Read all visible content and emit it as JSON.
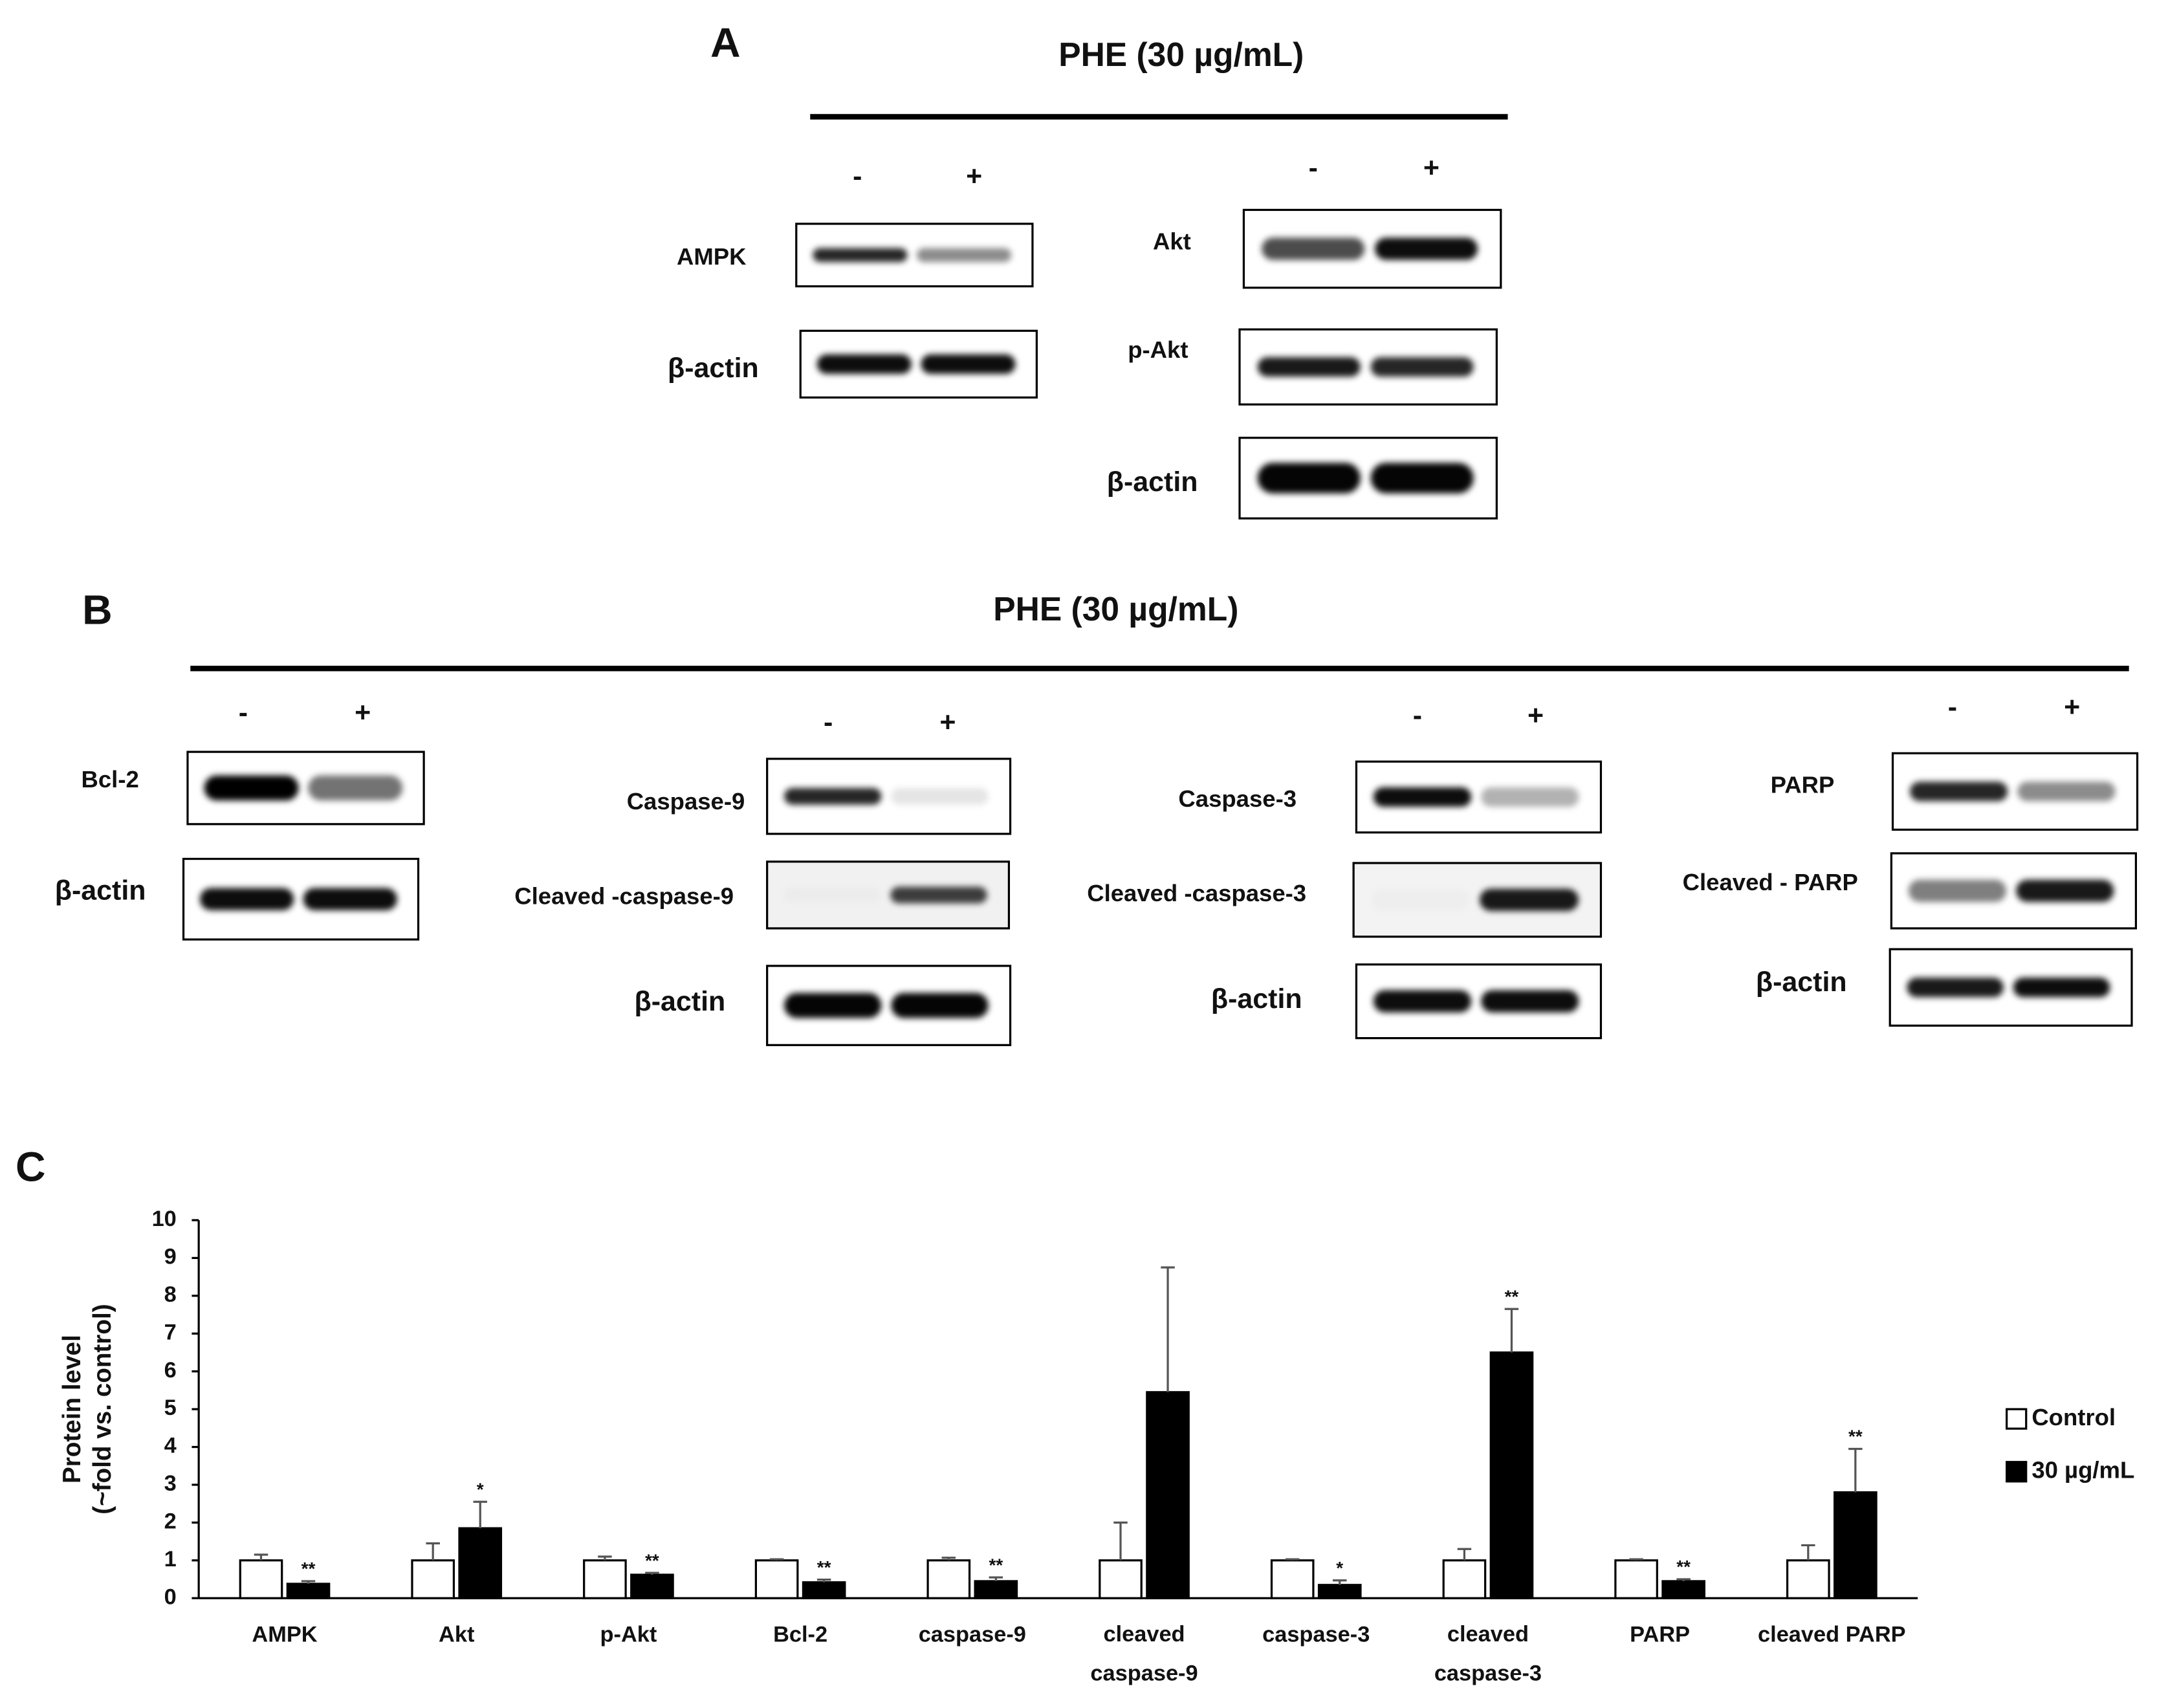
{
  "panel_a": {
    "label": "A",
    "treatment": "PHE (30 µg/mL)",
    "lanes": [
      "-",
      "+"
    ],
    "blots": [
      "AMPK",
      "β-actin",
      "Akt",
      "p-Akt",
      "β-actin"
    ]
  },
  "panel_b": {
    "label": "B",
    "treatment": "PHE (30 µg/mL)",
    "lanes": [
      "-",
      "+"
    ],
    "blots": [
      "Bcl-2",
      "β-actin",
      "Caspase-9",
      "Cleaved -caspase-9",
      "β-actin",
      "Caspase-3",
      "Cleaved -caspase-3",
      "β-actin",
      "PARP",
      "Cleaved - PARP",
      "β-actin"
    ]
  },
  "panel_c": {
    "label": "C"
  },
  "chart_data": {
    "type": "bar",
    "ylabel": [
      "Protein level",
      "(~fold vs. control)"
    ],
    "categories": [
      "AMPK",
      "Akt",
      "p-Akt",
      "Bcl-2",
      "caspase-9",
      "cleaved caspase-9",
      "caspase-3",
      "cleaved caspase-3",
      "PARP",
      "cleaved PARP"
    ],
    "series": [
      {
        "name": "Control",
        "color": "#ffffff",
        "values": [
          1,
          1,
          1,
          1,
          1,
          1,
          1,
          1,
          1,
          1
        ],
        "errors": [
          0.15,
          0.45,
          0.1,
          0.03,
          0.07,
          1.0,
          0.03,
          0.3,
          0.03,
          0.4
        ]
      },
      {
        "name": "30 µg/mL",
        "color": "#000000",
        "values": [
          0.38,
          1.85,
          0.62,
          0.42,
          0.45,
          5.45,
          0.35,
          6.5,
          0.45,
          2.8
        ],
        "errors": [
          0.07,
          0.7,
          0.05,
          0.07,
          0.1,
          3.3,
          0.12,
          1.15,
          0.05,
          1.15
        ],
        "annotations": [
          "**",
          "*",
          "**",
          "**",
          "**",
          null,
          "*",
          "**",
          "**",
          "**"
        ]
      }
    ],
    "ylim": [
      0,
      10
    ],
    "yticks": [
      0,
      1,
      2,
      3,
      4,
      5,
      6,
      7,
      8,
      9,
      10
    ],
    "grid": false,
    "legend": "right"
  }
}
